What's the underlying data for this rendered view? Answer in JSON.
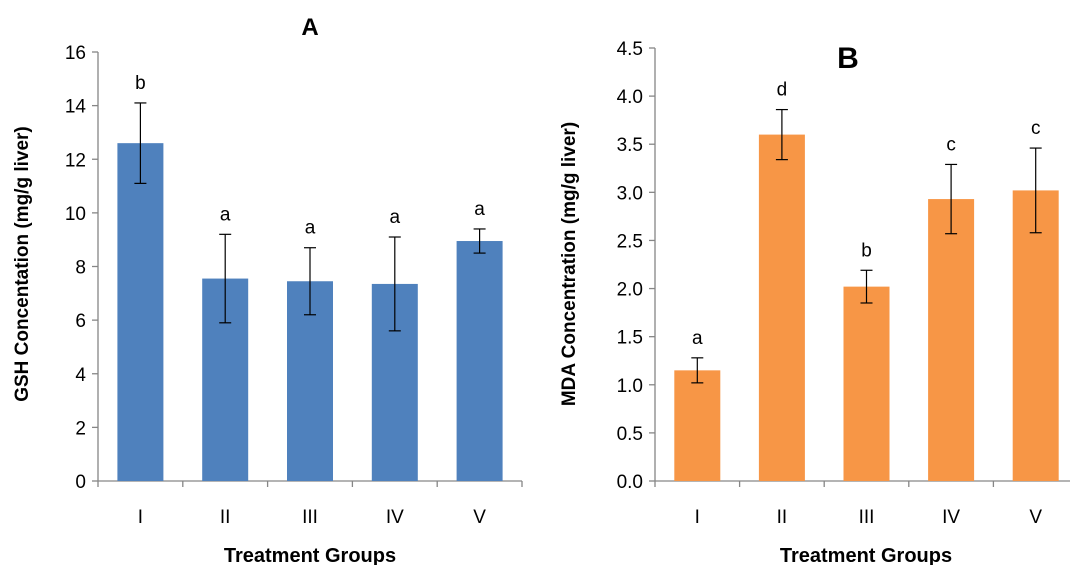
{
  "chart_data": [
    {
      "type": "bar",
      "title": "A",
      "xlabel": "Treatment Groups",
      "ylabel": "GSH Concentation (mg/g liver)",
      "ylim": [
        0,
        16
      ],
      "yticks": [
        "0",
        "2",
        "4",
        "6",
        "8",
        "10",
        "12",
        "14",
        "16"
      ],
      "ytick_values": [
        0,
        2,
        4,
        6,
        8,
        10,
        12,
        14,
        16
      ],
      "categories": [
        "I",
        "II",
        "III",
        "IV",
        "V"
      ],
      "values": [
        12.6,
        7.55,
        7.45,
        7.35,
        8.95
      ],
      "errors": [
        1.5,
        1.65,
        1.25,
        1.75,
        0.45
      ],
      "annotations": [
        "b",
        "a",
        "a",
        "a",
        "a"
      ],
      "bar_color": "#4f81bd",
      "grid": false
    },
    {
      "type": "bar",
      "title": "B",
      "xlabel": "Treatment Groups",
      "ylabel": "MDA Concentration (mg/g liver)",
      "ylim": [
        0,
        4.5
      ],
      "yticks": [
        "0.0",
        "0.5",
        "1.0",
        "1.5",
        "2.0",
        "2.5",
        "3.0",
        "3.5",
        "4.0",
        "4.5"
      ],
      "ytick_values": [
        0,
        0.5,
        1.0,
        1.5,
        2.0,
        2.5,
        3.0,
        3.5,
        4.0,
        4.5
      ],
      "categories": [
        "I",
        "II",
        "III",
        "IV",
        "V"
      ],
      "values": [
        1.15,
        3.6,
        2.02,
        2.93,
        3.02
      ],
      "errors": [
        0.13,
        0.26,
        0.17,
        0.36,
        0.44
      ],
      "annotations": [
        "a",
        "d",
        "b",
        "c",
        "c"
      ],
      "bar_color": "#f79646",
      "grid": false
    }
  ]
}
